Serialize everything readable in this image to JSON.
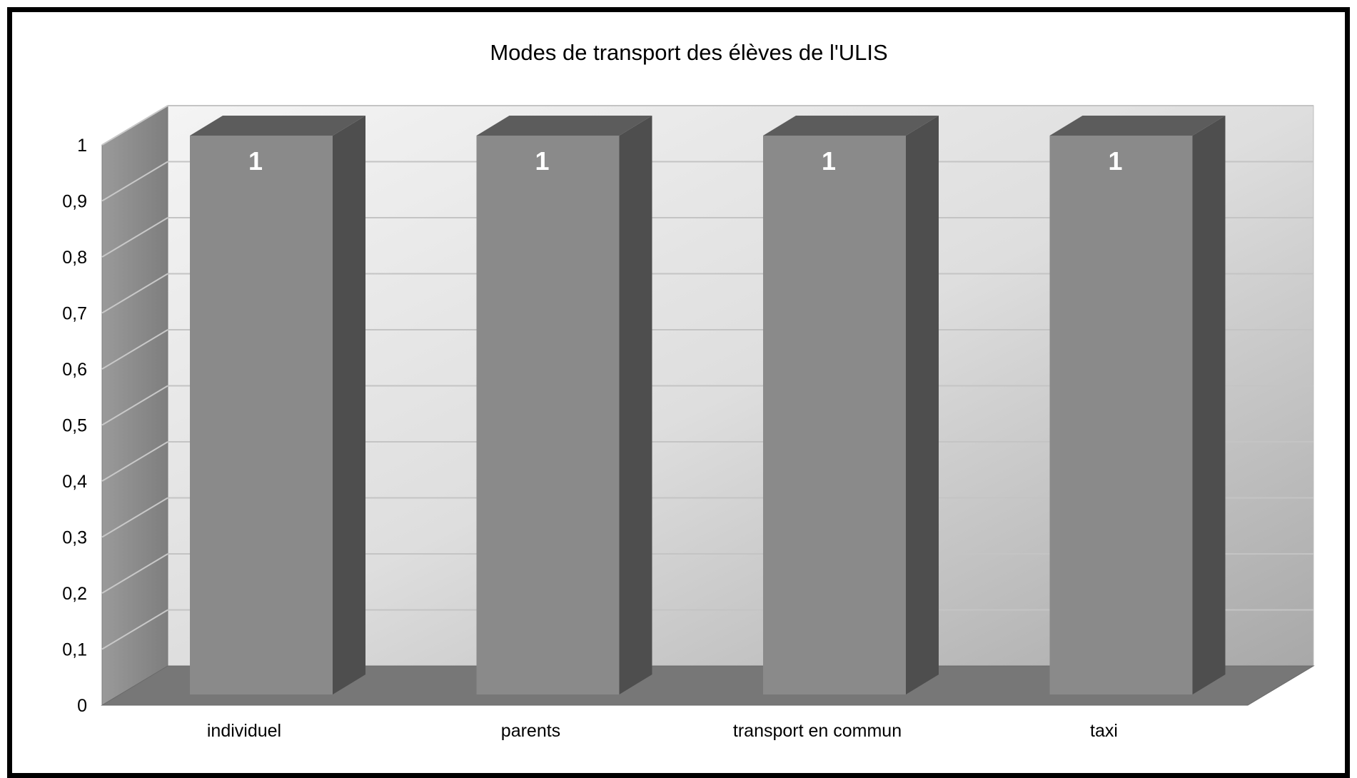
{
  "chart_data": {
    "type": "bar",
    "title": "Modes de transport des élèves de l'ULIS",
    "categories": [
      "individuel",
      "parents",
      "transport en commun",
      "taxi"
    ],
    "values": [
      1,
      1,
      1,
      1
    ],
    "data_labels": [
      "1",
      "1",
      "1",
      "1"
    ],
    "ylim": [
      0,
      1
    ],
    "yticks": [
      "0",
      "0,1",
      "0,2",
      "0,3",
      "0,4",
      "0,5",
      "0,6",
      "0,7",
      "0,8",
      "0,9",
      "1"
    ],
    "xlabel": "",
    "ylabel": "",
    "grid": true,
    "legend": "none",
    "colors": {
      "bar_front": "#8a8a8a",
      "bar_top": "#5c5c5c",
      "bar_side": "#4e4e4e",
      "floor": "#777777",
      "side_wall": "#8e8e8e"
    }
  }
}
